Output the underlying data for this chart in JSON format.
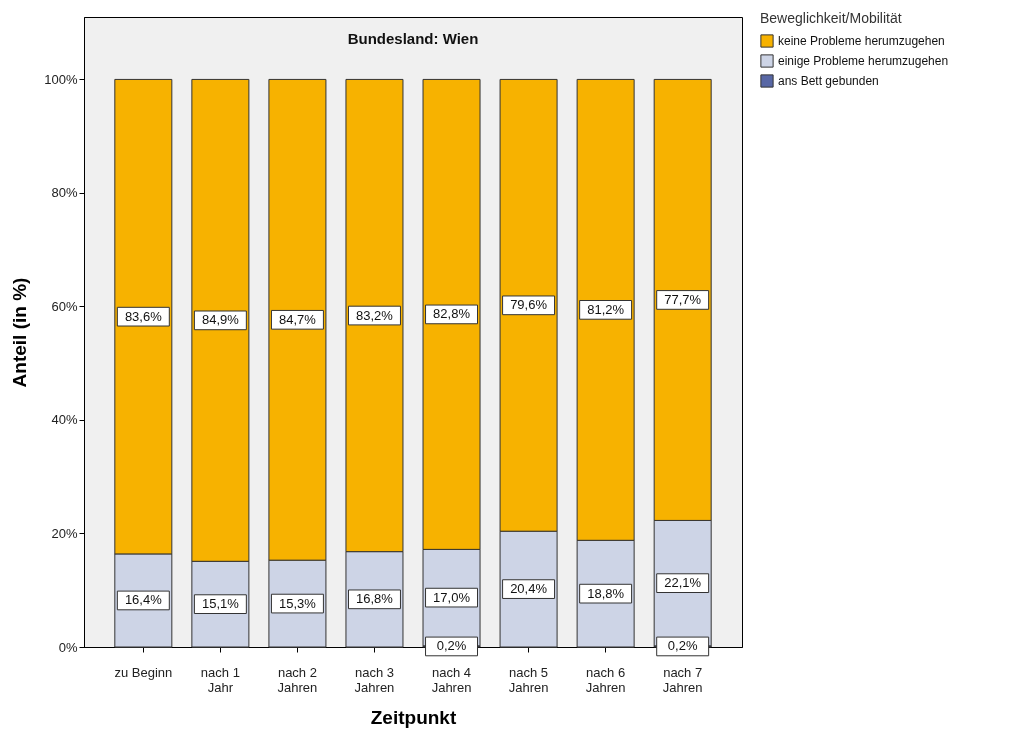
{
  "chart_data": {
    "type": "bar",
    "stacked": true,
    "title": "Bundesland: Wien",
    "xlabel": "Zeitpunkt",
    "ylabel": "Anteil (in %)",
    "legend_title": "Beweglichkeit/Mobilität",
    "legend": "top right",
    "grid": false,
    "categories": [
      "zu Beginn",
      "nach 1 Jahr",
      "nach 2 Jahren",
      "nach 3 Jahren",
      "nach 4 Jahren",
      "nach 5 Jahren",
      "nach 6 Jahren",
      "nach 7 Jahren"
    ],
    "ylim": [
      0,
      111
    ],
    "yticks": [
      {
        "value": 0,
        "label": "0%"
      },
      {
        "value": 20,
        "label": "20%"
      },
      {
        "value": 40,
        "label": "40%"
      },
      {
        "value": 60,
        "label": "60%"
      },
      {
        "value": 80,
        "label": "80%"
      },
      {
        "value": 100,
        "label": "100%"
      }
    ],
    "series": [
      {
        "name": "ans Bett gebunden",
        "color": "#5867a5",
        "values": [
          0,
          0,
          0,
          0,
          0.2,
          0,
          0,
          0.2
        ],
        "value_labels": [
          null,
          null,
          null,
          null,
          "0,2%",
          null,
          null,
          "0,2%"
        ]
      },
      {
        "name": "einige Probleme herumzugehen",
        "color": "#cdd4e6",
        "values": [
          16.4,
          15.1,
          15.3,
          16.8,
          17.0,
          20.4,
          18.8,
          22.1
        ],
        "value_labels": [
          "16,4%",
          "15,1%",
          "15,3%",
          "16,8%",
          "17,0%",
          "20,4%",
          "18,8%",
          "22,1%"
        ]
      },
      {
        "name": "keine Probleme herumzugehen",
        "color": "#f7b200",
        "values": [
          83.6,
          84.9,
          84.7,
          83.2,
          82.8,
          79.6,
          81.2,
          77.7
        ],
        "value_labels": [
          "83,6%",
          "84,9%",
          "84,7%",
          "83,2%",
          "82,8%",
          "79,6%",
          "81,2%",
          "77,7%"
        ]
      }
    ]
  }
}
